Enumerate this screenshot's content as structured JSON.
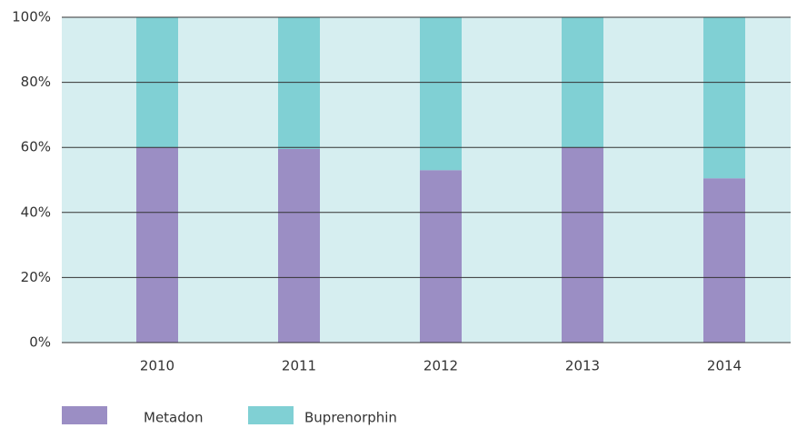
{
  "chart_data": {
    "type": "stacked_bar",
    "categories": [
      "2010",
      "2011",
      "2012",
      "2013",
      "2014"
    ],
    "series": [
      {
        "name": "Metadon",
        "color": "#9b8ec4",
        "values": [
          60,
          59.5,
          53,
          60,
          50.5
        ]
      },
      {
        "name": "Buprenorphin",
        "color": "#80d0d4",
        "values": [
          40,
          40.5,
          47,
          40,
          49.5
        ]
      }
    ],
    "ylim": [
      0,
      100
    ],
    "yticks": [
      {
        "value": 0,
        "label": "0%"
      },
      {
        "value": 20,
        "label": "20%"
      },
      {
        "value": 40,
        "label": "40%"
      },
      {
        "value": 60,
        "label": "60%"
      },
      {
        "value": 80,
        "label": "80%"
      },
      {
        "value": 100,
        "label": "100%"
      }
    ],
    "grid": true,
    "legend": "bottom-left"
  }
}
